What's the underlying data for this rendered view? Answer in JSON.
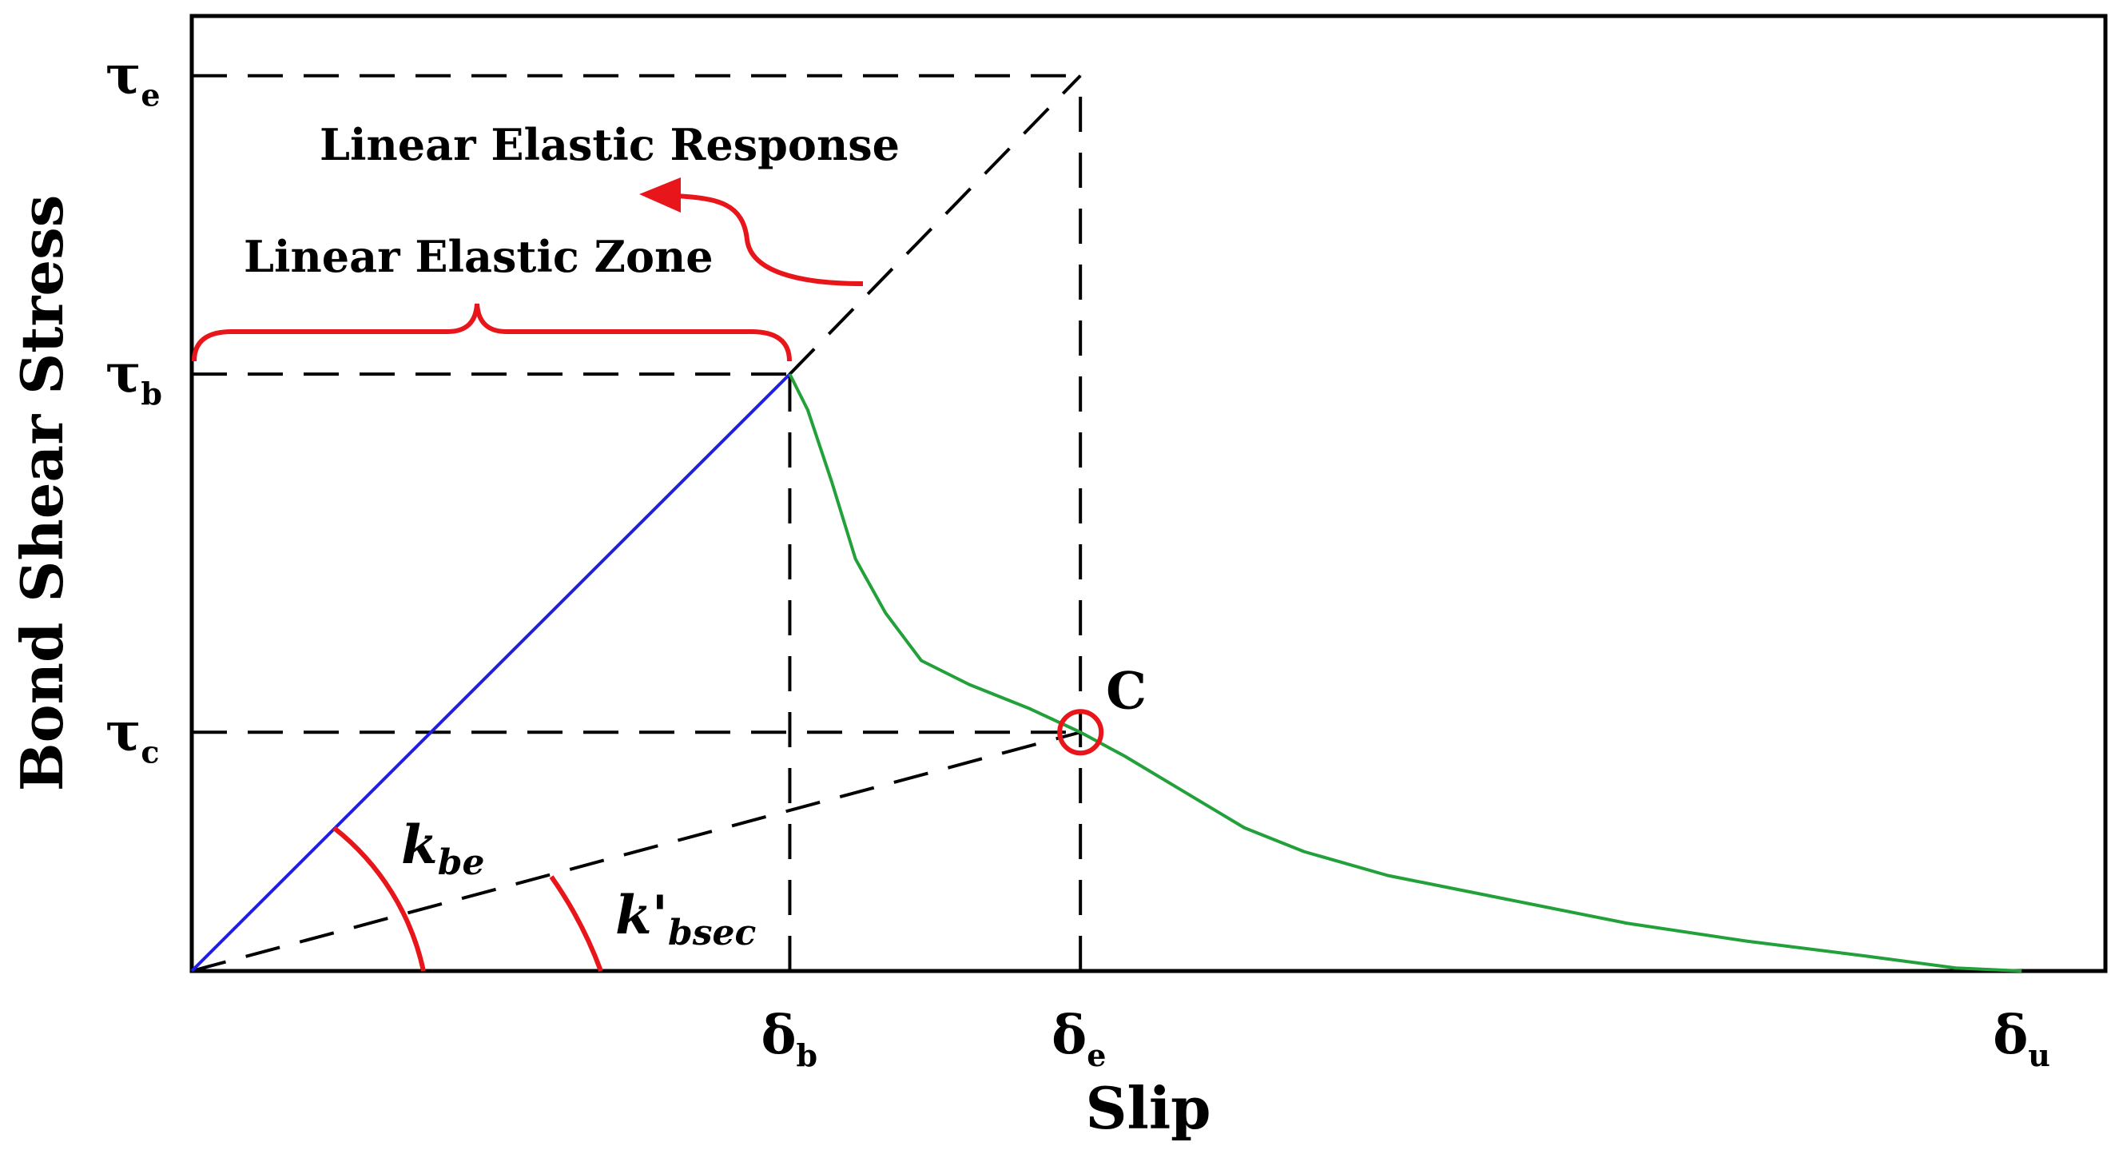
{
  "chart_data": {
    "type": "line",
    "title": "",
    "xlabel": "Slip",
    "ylabel": "Bond Shear Stress",
    "x_ticks": [
      {
        "sym": "δ",
        "sub": "b",
        "x": 1.0
      },
      {
        "sym": "δ",
        "sub": "e",
        "x": 1.486
      },
      {
        "sym": "δ",
        "sub": "u",
        "x": 3.06
      }
    ],
    "y_ticks": [
      {
        "sym": "τ",
        "sub": "e",
        "y": 1.5
      },
      {
        "sym": "τ",
        "sub": "b",
        "y": 1.0
      },
      {
        "sym": "τ",
        "sub": "c",
        "y": 0.4
      }
    ],
    "xlim": [
      0,
      3.2
    ],
    "ylim": [
      0,
      1.6
    ],
    "series": [
      {
        "color": "#1f1fe0",
        "x": [
          0,
          1.0
        ],
        "y": [
          0,
          1.0
        ]
      },
      {
        "color": "#22a03a",
        "x": [
          1.0,
          1.03,
          1.07,
          1.11,
          1.16,
          1.22,
          1.3,
          1.4,
          1.486,
          1.56,
          1.66,
          1.76,
          1.86,
          2.0,
          2.2,
          2.4,
          2.6,
          2.8,
          2.95,
          3.06
        ],
        "y": [
          1.0,
          0.94,
          0.82,
          0.69,
          0.6,
          0.52,
          0.48,
          0.44,
          0.4,
          0.36,
          0.3,
          0.24,
          0.2,
          0.16,
          0.12,
          0.08,
          0.05,
          0.025,
          0.005,
          0.0
        ]
      }
    ],
    "reference_lines": [
      {
        "from": [
          0,
          1.0
        ],
        "to": [
          1.0,
          1.0
        ]
      },
      {
        "from": [
          0,
          1.5
        ],
        "to": [
          1.486,
          1.5
        ]
      },
      {
        "from": [
          0,
          0.4
        ],
        "to": [
          1.486,
          0.4
        ]
      },
      {
        "from": [
          1.0,
          0
        ],
        "to": [
          1.0,
          1.0
        ]
      },
      {
        "from": [
          1.486,
          0
        ],
        "to": [
          1.486,
          1.5
        ]
      },
      {
        "from": [
          1.0,
          1.0
        ],
        "to": [
          1.486,
          1.5
        ]
      },
      {
        "from": [
          0,
          0
        ],
        "to": [
          1.486,
          0.4
        ]
      }
    ],
    "marker": {
      "label": "C",
      "x": 1.486,
      "y": 0.4,
      "color": "#e8161b"
    },
    "annotations": [
      {
        "text": "Linear Elastic Response",
        "color": "#e8161b"
      },
      {
        "text": "Linear Elastic Zone",
        "color": "#e8161b"
      }
    ],
    "angle_labels": [
      {
        "base": "k",
        "sub": "be",
        "color": "#e8161b"
      },
      {
        "base": "k'",
        "sub": "bsec",
        "color": "#e8161b"
      }
    ],
    "grid": false,
    "legend": "none"
  }
}
